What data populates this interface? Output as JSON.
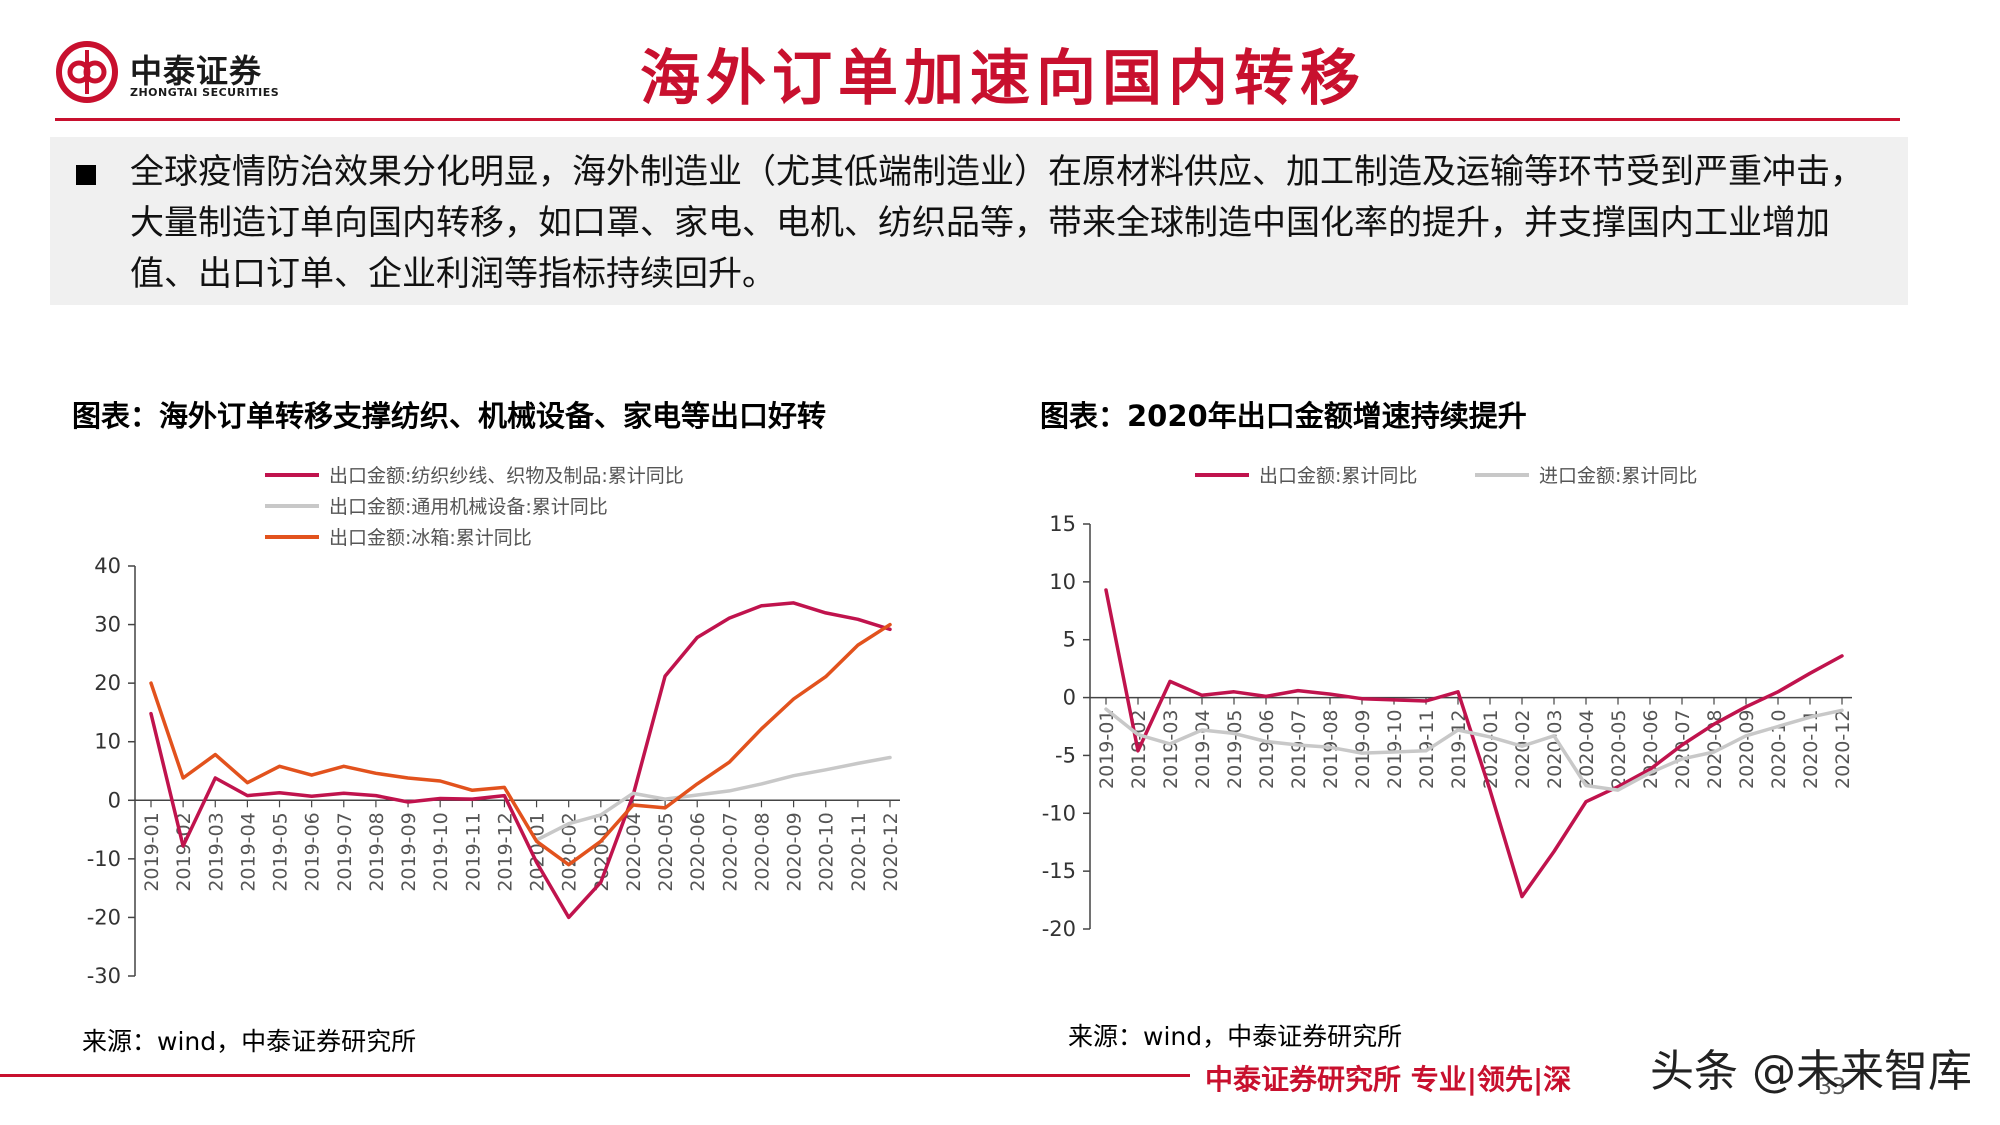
{
  "header": {
    "logo_cn": "中泰证券",
    "logo_en": "ZHONGTAI SECURITIES",
    "title": "海外订单加速向国内转移"
  },
  "summary": {
    "text": "全球疫情防治效果分化明显，海外制造业（尤其低端制造业）在原材料供应、加工制造及运输等环节受到严重冲击，大量制造订单向国内转移，如口罩、家电、电机、纺织品等，带来全球制造中国化率的提升，并支撑国内工业增加值、出口订单、企业利润等指标持续回升。"
  },
  "chart_data": [
    {
      "type": "line",
      "title": "图表：海外订单转移支撑纺织、机械设备、家电等出口好转",
      "source": "来源：wind，中泰证券研究所",
      "categories": [
        "2019-01",
        "2019-02",
        "2019-03",
        "2019-04",
        "2019-05",
        "2019-06",
        "2019-07",
        "2019-08",
        "2019-09",
        "2019-10",
        "2019-11",
        "2019-12",
        "2020-01",
        "2020-02",
        "2020-03",
        "2020-04",
        "2020-05",
        "2020-06",
        "2020-07",
        "2020-08",
        "2020-09",
        "2020-10",
        "2020-11",
        "2020-12"
      ],
      "yticks": [
        40,
        30,
        20,
        10,
        0,
        -10,
        -20,
        -30
      ],
      "ylim": [
        -30,
        40
      ],
      "legend_position": "top-left",
      "grid": false,
      "series": [
        {
          "name": "出口金额:纺织纱线、织物及制品:累计同比",
          "color": "#c0134d",
          "values": [
            14.8,
            -7.8,
            3.8,
            0.8,
            1.3,
            0.7,
            1.2,
            0.8,
            -0.3,
            0.3,
            0.2,
            0.8,
            -10.6,
            -20.0,
            -14.0,
            0.8,
            21.2,
            27.8,
            31.1,
            33.2,
            33.7,
            32.0,
            30.9,
            29.2
          ]
        },
        {
          "name": "出口金额:通用机械设备:累计同比",
          "color": "#c8c8c8",
          "values": [
            null,
            null,
            null,
            null,
            null,
            null,
            null,
            null,
            null,
            null,
            null,
            null,
            -6.8,
            -4.0,
            -2.5,
            1.2,
            0.2,
            0.9,
            1.6,
            2.8,
            4.2,
            5.2,
            6.3,
            7.3
          ]
        },
        {
          "name": "出口金额:冰箱:累计同比",
          "color": "#e2521d",
          "values": [
            20.0,
            3.8,
            7.8,
            3.0,
            5.8,
            4.3,
            5.8,
            4.6,
            3.8,
            3.3,
            1.7,
            2.2,
            -7.0,
            -11.0,
            -7.0,
            -0.8,
            -1.3,
            2.8,
            6.5,
            12.2,
            17.3,
            21.1,
            26.5,
            30.0
          ]
        }
      ]
    },
    {
      "type": "line",
      "title": "图表：2020年出口金额增速持续提升",
      "source": "来源：wind，中泰证券研究所",
      "categories": [
        "2019-01",
        "2019-02",
        "2019-03",
        "2019-04",
        "2019-05",
        "2019-06",
        "2019-07",
        "2019-08",
        "2019-09",
        "2019-10",
        "2019-11",
        "2019-12",
        "2020-01",
        "2020-02",
        "2020-03",
        "2020-04",
        "2020-05",
        "2020-06",
        "2020-07",
        "2020-08",
        "2020-09",
        "2020-10",
        "2020-11",
        "2020-12"
      ],
      "yticks": [
        15,
        10,
        5,
        0,
        -5,
        -10,
        -15,
        -20
      ],
      "ylim": [
        -20,
        15
      ],
      "legend_position": "top",
      "grid": false,
      "series": [
        {
          "name": "出口金额:累计同比",
          "color": "#c0134d",
          "values": [
            9.3,
            -4.6,
            1.4,
            0.2,
            0.5,
            0.1,
            0.6,
            0.3,
            -0.1,
            -0.2,
            -0.3,
            0.5,
            -8.0,
            -17.2,
            -13.3,
            -9.0,
            -7.7,
            -6.2,
            -4.1,
            -2.3,
            -0.8,
            0.5,
            2.1,
            3.6
          ]
        },
        {
          "name": "进口金额:累计同比",
          "color": "#c8c8c8",
          "values": [
            -1.0,
            -3.2,
            -4.0,
            -2.8,
            -3.1,
            -3.8,
            -4.1,
            -4.3,
            -4.8,
            -4.7,
            -4.6,
            -2.8,
            -3.4,
            -4.2,
            -3.3,
            -7.6,
            -8.0,
            -6.5,
            -5.3,
            -4.7,
            -3.3,
            -2.5,
            -1.7,
            -1.1
          ]
        }
      ]
    }
  ],
  "footer": {
    "text": "中泰证券研究所 专业|领先|深",
    "page_number": "33",
    "watermark": "头条 @未来智库"
  }
}
